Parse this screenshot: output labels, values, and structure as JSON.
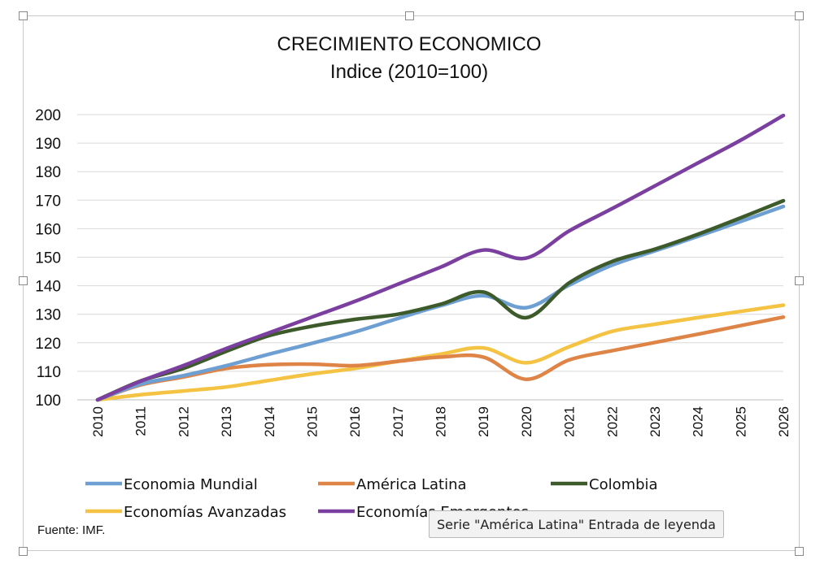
{
  "chart_data": {
    "type": "line",
    "title": "CRECIMIENTO ECONOMICO",
    "subtitle": "Indice (2010=100)",
    "ylim": [
      100,
      200
    ],
    "y_ticks": [
      "100",
      "110",
      "120",
      "130",
      "140",
      "150",
      "160",
      "170",
      "180",
      "190",
      "200"
    ],
    "x": [
      "2010",
      "2011",
      "2012",
      "2013",
      "2014",
      "2015",
      "2016",
      "2017",
      "2018",
      "2019",
      "2020",
      "2021",
      "2022",
      "2023",
      "2024",
      "2025",
      "2026"
    ],
    "grid": true,
    "legend_position": "bottom",
    "series": [
      {
        "name": "Economia Mundial",
        "color": "#6e9fd3",
        "values": [
          100,
          105.5,
          108.5,
          112,
          116,
          119.8,
          123.8,
          128.5,
          133,
          136.5,
          132.3,
          140.2,
          147.2,
          152.2,
          157.3,
          162.5,
          167.8
        ]
      },
      {
        "name": "América Latina",
        "color": "#de8447",
        "values": [
          100,
          105.2,
          108,
          111,
          112.3,
          112.5,
          112,
          113.5,
          115,
          115,
          107.2,
          114,
          117.2,
          120.1,
          123,
          126,
          129
        ]
      },
      {
        "name": "Colombia",
        "color": "#3d5a2a",
        "values": [
          100,
          106.6,
          111,
          117,
          122.5,
          125.8,
          128.2,
          130,
          133.5,
          137.8,
          128.8,
          141,
          148.5,
          152.8,
          158,
          163.8,
          169.8
        ]
      },
      {
        "name": "Economías Avanzadas",
        "color": "#f4c343",
        "values": [
          100,
          101.8,
          103.1,
          104.5,
          106.8,
          109.1,
          111,
          113.5,
          116,
          118.2,
          113,
          118.6,
          124,
          126.5,
          128.8,
          131,
          133.2
        ]
      },
      {
        "name": "Economías Emergentes",
        "color": "#7b3fa0",
        "values": [
          100,
          106.5,
          112,
          118,
          123.5,
          129,
          134.5,
          140.5,
          146.5,
          152.5,
          149.7,
          159.2,
          167,
          175,
          183,
          191,
          199.7
        ]
      }
    ],
    "source": "Fuente: IMF."
  },
  "tooltip": "Serie \"América Latina\" Entrada de leyenda"
}
